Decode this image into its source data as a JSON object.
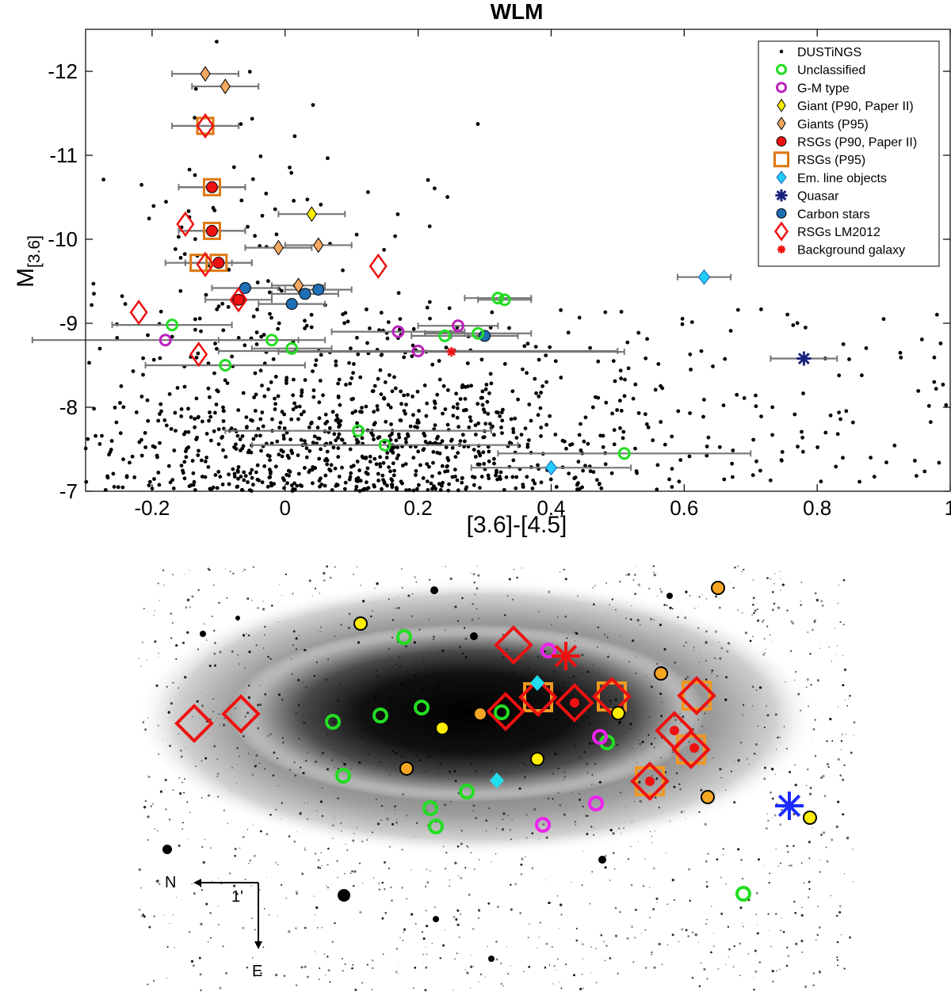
{
  "chart_data": {
    "type": "scatter",
    "title": "WLM",
    "xlabel": "[3.6]-[4.5]",
    "ylabel_main": "M",
    "ylabel_sub": "[3.6]",
    "xlim": [
      -0.3,
      1.0
    ],
    "ylim": [
      -7,
      -12.5
    ],
    "y_inverted": true,
    "legend_position": "top-right",
    "xticks": [
      -0.2,
      0,
      0.2,
      0.4,
      0.6,
      0.8,
      1
    ],
    "xtick_labels": [
      "-0.2",
      "0",
      "0.2",
      "0.4",
      "0.6",
      "0.8",
      "1"
    ],
    "yticks": [
      -12,
      -11,
      -10,
      -9,
      -8,
      -7
    ],
    "ytick_labels": [
      "-12",
      "-11",
      "-10",
      "-9",
      "-8",
      "-7"
    ],
    "legend": [
      {
        "key": "dustings",
        "label": "DUSTiNGS"
      },
      {
        "key": "unclassified",
        "label": "Unclassified"
      },
      {
        "key": "gm",
        "label": "G-M type"
      },
      {
        "key": "giant_p90",
        "label": "Giant (P90, Paper II)"
      },
      {
        "key": "giants_p95",
        "label": "Giants (P95)"
      },
      {
        "key": "rsg_p90",
        "label": "RSGs (P90, Paper II)"
      },
      {
        "key": "rsg_p95",
        "label": "RSGs (P95)"
      },
      {
        "key": "emline",
        "label": "Em. line objects"
      },
      {
        "key": "quasar",
        "label": "Quasar"
      },
      {
        "key": "carbon",
        "label": "Carbon stars"
      },
      {
        "key": "rsg_lm",
        "label": "RSGs LM2012"
      },
      {
        "key": "bg",
        "label": "Background galaxy"
      }
    ],
    "colors": {
      "unclassified": "#22dd22",
      "gm": "#bb22bb",
      "giant_p90": "#ffee00",
      "giants_p95": "#f4a860",
      "rsg_p90": "#ee1111",
      "rsg_p95": "#dd7711",
      "emline": "#22ccff",
      "quasar": "#1a237e",
      "carbon": "#1f6fb5",
      "rsg_lm": "#ee1111",
      "bg": "#ee1111",
      "errbar": "#777777"
    },
    "dustings_count": 1150,
    "series": {
      "unclassified": [
        {
          "x": -0.17,
          "y": -8.98,
          "xerr": 0.09
        },
        {
          "x": -0.09,
          "y": -8.5,
          "xerr": 0.12
        },
        {
          "x": -0.02,
          "y": -8.8,
          "xerr": 0.08
        },
        {
          "x": 0.01,
          "y": -8.7,
          "xerr": 0.06
        },
        {
          "x": 0.11,
          "y": -7.72,
          "xerr": 0.2
        },
        {
          "x": 0.15,
          "y": -7.55,
          "xerr": 0.2
        },
        {
          "x": 0.24,
          "y": -8.85,
          "xerr": 0.05
        },
        {
          "x": 0.29,
          "y": -8.88,
          "xerr": 0.08
        },
        {
          "x": 0.32,
          "y": -9.3,
          "xerr": 0.05
        },
        {
          "x": 0.33,
          "y": -9.28,
          "xerr": 0.04
        },
        {
          "x": 0.51,
          "y": -7.45,
          "xerr": 0.19
        }
      ],
      "gm": [
        {
          "x": -0.18,
          "y": -8.8,
          "xerr": 0.2
        },
        {
          "x": 0.17,
          "y": -8.9,
          "xerr": 0.1
        },
        {
          "x": 0.2,
          "y": -8.67,
          "xerr": 0.3
        },
        {
          "x": 0.26,
          "y": -8.97,
          "xerr": 0.06
        }
      ],
      "giant_p90": [
        {
          "x": 0.04,
          "y": -10.3,
          "xerr": 0.05
        }
      ],
      "giants_p95": [
        {
          "x": -0.12,
          "y": -11.97,
          "xerr": 0.05
        },
        {
          "x": -0.09,
          "y": -11.82,
          "xerr": 0.05
        },
        {
          "x": -0.01,
          "y": -9.9,
          "xerr": 0.05
        },
        {
          "x": 0.05,
          "y": -9.93,
          "xerr": 0.05
        },
        {
          "x": 0.02,
          "y": -9.45,
          "xerr": 0.04
        }
      ],
      "rsg_p90": [
        {
          "x": -0.11,
          "y": -10.62,
          "xerr": 0.05
        },
        {
          "x": -0.11,
          "y": -10.1,
          "xerr": 0.05
        },
        {
          "x": -0.1,
          "y": -9.72,
          "xerr": 0.05
        },
        {
          "x": -0.07,
          "y": -9.28,
          "xerr": 0.05
        }
      ],
      "rsg_p95": [
        {
          "x": -0.12,
          "y": -11.35,
          "xerr": 0.05
        },
        {
          "x": -0.11,
          "y": -10.62,
          "xerr": 0.05
        },
        {
          "x": -0.11,
          "y": -10.1,
          "xerr": 0.05
        },
        {
          "x": -0.13,
          "y": -9.72,
          "xerr": 0.05
        },
        {
          "x": -0.1,
          "y": -9.72,
          "xerr": 0.05
        }
      ],
      "emline": [
        {
          "x": 0.63,
          "y": -9.55,
          "xerr": 0.04
        },
        {
          "x": 0.4,
          "y": -7.28,
          "xerr": 0.12
        }
      ],
      "quasar": [
        {
          "x": 0.78,
          "y": -8.58,
          "xerr": 0.05
        }
      ],
      "carbon": [
        {
          "x": -0.06,
          "y": -9.42,
          "xerr": 0.05
        },
        {
          "x": 0.01,
          "y": -9.23,
          "xerr": 0.05
        },
        {
          "x": 0.03,
          "y": -9.35,
          "xerr": 0.05
        },
        {
          "x": 0.05,
          "y": -9.4,
          "xerr": 0.05
        },
        {
          "x": 0.3,
          "y": -8.85,
          "xerr": 0.05
        }
      ],
      "rsg_lm": [
        {
          "x": -0.12,
          "y": -11.35
        },
        {
          "x": -0.15,
          "y": -10.18
        },
        {
          "x": -0.12,
          "y": -9.7
        },
        {
          "x": -0.07,
          "y": -9.28
        },
        {
          "x": -0.22,
          "y": -9.13
        },
        {
          "x": -0.13,
          "y": -8.63
        },
        {
          "x": 0.14,
          "y": -9.68
        }
      ],
      "bg": [
        {
          "x": 0.25,
          "y": -8.66,
          "xerr": 0.26
        }
      ]
    }
  },
  "image_panel": {
    "compass_n": "N",
    "compass_e": "E",
    "scale_label": "1'",
    "markers": {
      "yellow": [
        [
          455,
          787
        ],
        [
          558,
          919
        ],
        [
          678,
          958
        ],
        [
          780,
          900
        ],
        [
          1022,
          1032
        ]
      ],
      "orange": [
        [
          906,
          742
        ],
        [
          606,
          901
        ],
        [
          513,
          970
        ],
        [
          834,
          850
        ],
        [
          893,
          1006
        ]
      ],
      "green": [
        [
          510,
          804
        ],
        [
          420,
          911
        ],
        [
          480,
          903
        ],
        [
          532,
          893
        ],
        [
          633,
          899
        ],
        [
          766,
          937
        ],
        [
          433,
          979
        ],
        [
          589,
          999
        ],
        [
          543,
          1020
        ],
        [
          550,
          1043
        ],
        [
          938,
          1128
        ]
      ],
      "magenta": [
        [
          692,
          821
        ],
        [
          757,
          930
        ],
        [
          752,
          1014
        ],
        [
          685,
          1041
        ]
      ],
      "cyan": [
        [
          678,
          862
        ],
        [
          627,
          985
        ]
      ],
      "red_diamond": [
        [
          245,
          913
        ],
        [
          304,
          901
        ],
        [
          648,
          814
        ],
        [
          638,
          898
        ],
        [
          679,
          880
        ],
        [
          725,
          887
        ],
        [
          772,
          879
        ],
        [
          879,
          878
        ],
        [
          851,
          922
        ],
        [
          872,
          946
        ],
        [
          820,
          986
        ]
      ],
      "orange_square": [
        [
          679,
          880
        ],
        [
          772,
          879
        ],
        [
          879,
          878
        ],
        [
          872,
          946
        ],
        [
          820,
          986
        ]
      ],
      "red_dot": [
        [
          725,
          887
        ],
        [
          851,
          922
        ],
        [
          876,
          944
        ],
        [
          820,
          986
        ]
      ],
      "red_star": [
        [
          714,
          828
        ]
      ],
      "blue_star": [
        [
          996,
          1017
        ]
      ]
    }
  }
}
